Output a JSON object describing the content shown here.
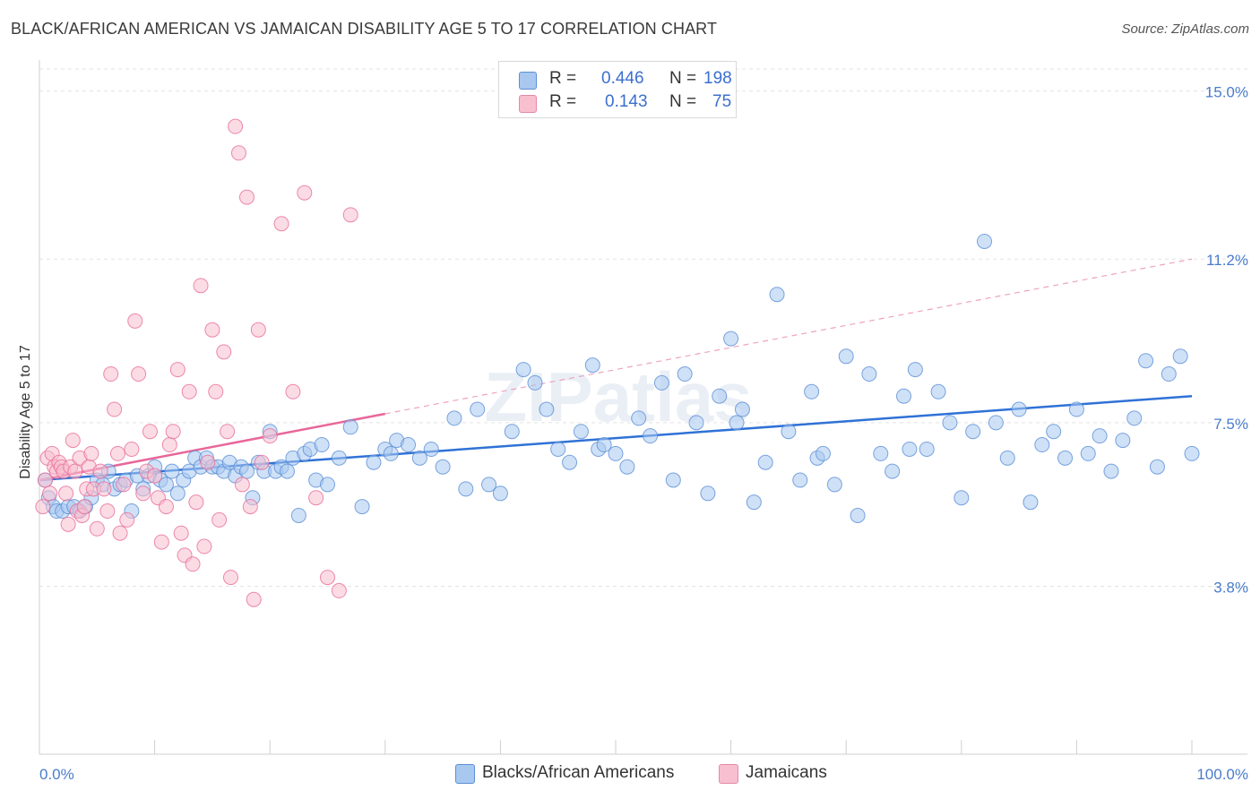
{
  "title": "BLACK/AFRICAN AMERICAN VS JAMAICAN DISABILITY AGE 5 TO 17 CORRELATION CHART",
  "source": "Source: ZipAtlas.com",
  "watermark": "ZIPatlas",
  "legend": {
    "r_label": "R =",
    "n_label": "N =",
    "rows": [
      {
        "r": "0.446",
        "n": "198",
        "color": "#a8c8f0",
        "border": "#5b8fd6"
      },
      {
        "r": "0.143",
        "n": "75",
        "color": "#f7bfd0",
        "border": "#e58aa8"
      }
    ]
  },
  "bottom_legend": [
    {
      "label": "Blacks/African Americans",
      "color": "#a8c8f0",
      "border": "#5b8fd6"
    },
    {
      "label": "Jamaicans",
      "color": "#f7bfd0",
      "border": "#e58aa8"
    }
  ],
  "chart_data": {
    "type": "scatter",
    "ylabel": "Disability Age 5 to 17",
    "xlim": [
      0,
      100
    ],
    "ylim": [
      0,
      15.5
    ],
    "y_ticks": [
      {
        "value": 15.0,
        "label": "15.0%"
      },
      {
        "value": 11.2,
        "label": "11.2%"
      },
      {
        "value": 7.5,
        "label": "7.5%"
      },
      {
        "value": 3.8,
        "label": "3.8%"
      }
    ],
    "x_tick_labels": [
      {
        "value": 0,
        "label": "0.0%"
      },
      {
        "value": 100,
        "label": "100.0%"
      }
    ],
    "grid": true,
    "series": [
      {
        "name": "Blacks/African Americans",
        "color": "#5b8fd6",
        "fill": "#a8c8f0",
        "trend": {
          "x0": 0,
          "y0": 6.2,
          "x1": 100,
          "y1": 8.1,
          "dashed_after": null
        },
        "points": [
          [
            0.5,
            6.2
          ],
          [
            0.8,
            5.8
          ],
          [
            1.2,
            5.6
          ],
          [
            1.5,
            5.5
          ],
          [
            2,
            5.5
          ],
          [
            2.5,
            5.6
          ],
          [
            3,
            5.6
          ],
          [
            3.5,
            5.5
          ],
          [
            4,
            5.6
          ],
          [
            4.5,
            5.8
          ],
          [
            5,
            6.2
          ],
          [
            5.5,
            6.1
          ],
          [
            6,
            6.4
          ],
          [
            6.5,
            6.0
          ],
          [
            7,
            6.1
          ],
          [
            7.5,
            6.2
          ],
          [
            8,
            5.5
          ],
          [
            8.5,
            6.3
          ],
          [
            9,
            6.0
          ],
          [
            9.5,
            6.3
          ],
          [
            10,
            6.5
          ],
          [
            10.5,
            6.2
          ],
          [
            11,
            6.1
          ],
          [
            11.5,
            6.4
          ],
          [
            12,
            5.9
          ],
          [
            12.5,
            6.2
          ],
          [
            13,
            6.4
          ],
          [
            13.5,
            6.7
          ],
          [
            14,
            6.5
          ],
          [
            14.5,
            6.7
          ],
          [
            15,
            6.5
          ],
          [
            15.5,
            6.5
          ],
          [
            16,
            6.4
          ],
          [
            16.5,
            6.6
          ],
          [
            17,
            6.3
          ],
          [
            17.5,
            6.5
          ],
          [
            18,
            6.4
          ],
          [
            18.5,
            5.8
          ],
          [
            19,
            6.6
          ],
          [
            19.5,
            6.4
          ],
          [
            20,
            7.3
          ],
          [
            20.5,
            6.4
          ],
          [
            21,
            6.5
          ],
          [
            21.5,
            6.4
          ],
          [
            22,
            6.7
          ],
          [
            22.5,
            5.4
          ],
          [
            23,
            6.8
          ],
          [
            23.5,
            6.9
          ],
          [
            24,
            6.2
          ],
          [
            24.5,
            7.0
          ],
          [
            25,
            6.1
          ],
          [
            26,
            6.7
          ],
          [
            27,
            7.4
          ],
          [
            28,
            5.6
          ],
          [
            29,
            6.6
          ],
          [
            30,
            6.9
          ],
          [
            30.5,
            6.8
          ],
          [
            31,
            7.1
          ],
          [
            32,
            7.0
          ],
          [
            33,
            6.7
          ],
          [
            34,
            6.9
          ],
          [
            35,
            6.5
          ],
          [
            36,
            7.6
          ],
          [
            37,
            6.0
          ],
          [
            38,
            7.8
          ],
          [
            39,
            6.1
          ],
          [
            40,
            5.9
          ],
          [
            41,
            7.3
          ],
          [
            42,
            8.7
          ],
          [
            43,
            8.4
          ],
          [
            44,
            7.8
          ],
          [
            45,
            6.9
          ],
          [
            46,
            6.6
          ],
          [
            47,
            7.3
          ],
          [
            48,
            8.8
          ],
          [
            48.5,
            6.9
          ],
          [
            49,
            7.0
          ],
          [
            50,
            6.8
          ],
          [
            51,
            6.5
          ],
          [
            52,
            7.6
          ],
          [
            53,
            7.2
          ],
          [
            54,
            8.4
          ],
          [
            55,
            6.2
          ],
          [
            56,
            8.6
          ],
          [
            57,
            7.5
          ],
          [
            58,
            5.9
          ],
          [
            59,
            8.1
          ],
          [
            60,
            9.4
          ],
          [
            60.5,
            7.5
          ],
          [
            61,
            7.8
          ],
          [
            62,
            5.7
          ],
          [
            63,
            6.6
          ],
          [
            64,
            10.4
          ],
          [
            65,
            7.3
          ],
          [
            66,
            6.2
          ],
          [
            67,
            8.2
          ],
          [
            67.5,
            6.7
          ],
          [
            68,
            6.8
          ],
          [
            69,
            6.1
          ],
          [
            70,
            9.0
          ],
          [
            71,
            5.4
          ],
          [
            72,
            8.6
          ],
          [
            73,
            6.8
          ],
          [
            74,
            6.4
          ],
          [
            75,
            8.1
          ],
          [
            75.5,
            6.9
          ],
          [
            76,
            8.7
          ],
          [
            77,
            6.9
          ],
          [
            78,
            8.2
          ],
          [
            79,
            7.5
          ],
          [
            80,
            5.8
          ],
          [
            81,
            7.3
          ],
          [
            82,
            11.6
          ],
          [
            83,
            7.5
          ],
          [
            84,
            6.7
          ],
          [
            85,
            7.8
          ],
          [
            86,
            5.7
          ],
          [
            87,
            7.0
          ],
          [
            88,
            7.3
          ],
          [
            89,
            6.7
          ],
          [
            90,
            7.8
          ],
          [
            91,
            6.8
          ],
          [
            92,
            7.2
          ],
          [
            93,
            6.4
          ],
          [
            94,
            7.1
          ],
          [
            95,
            7.6
          ],
          [
            96,
            8.9
          ],
          [
            97,
            6.5
          ],
          [
            98,
            8.6
          ],
          [
            99,
            9.0
          ],
          [
            100,
            6.8
          ]
        ]
      },
      {
        "name": "Jamaicans",
        "color": "#e86d98",
        "fill": "#f7bfd0",
        "trend": {
          "x0": 0,
          "y0": 6.2,
          "x1": 30,
          "y1": 7.7,
          "dashed_after": 30
        },
        "points": [
          [
            0.3,
            5.6
          ],
          [
            0.5,
            6.2
          ],
          [
            0.7,
            6.7
          ],
          [
            0.9,
            5.9
          ],
          [
            1.1,
            6.8
          ],
          [
            1.3,
            6.5
          ],
          [
            1.5,
            6.4
          ],
          [
            1.7,
            6.6
          ],
          [
            1.9,
            6.5
          ],
          [
            2.1,
            6.4
          ],
          [
            2.3,
            5.9
          ],
          [
            2.5,
            5.2
          ],
          [
            2.7,
            6.5
          ],
          [
            2.9,
            7.1
          ],
          [
            3.1,
            6.4
          ],
          [
            3.3,
            5.5
          ],
          [
            3.5,
            6.7
          ],
          [
            3.7,
            5.4
          ],
          [
            3.9,
            5.6
          ],
          [
            4.1,
            6.0
          ],
          [
            4.3,
            6.5
          ],
          [
            4.5,
            6.8
          ],
          [
            4.7,
            6.0
          ],
          [
            5,
            5.1
          ],
          [
            5.3,
            6.4
          ],
          [
            5.6,
            6.0
          ],
          [
            5.9,
            5.5
          ],
          [
            6.2,
            8.6
          ],
          [
            6.5,
            7.8
          ],
          [
            6.8,
            6.8
          ],
          [
            7,
            5.0
          ],
          [
            7.3,
            6.1
          ],
          [
            7.6,
            5.3
          ],
          [
            8,
            6.9
          ],
          [
            8.3,
            9.8
          ],
          [
            8.6,
            8.6
          ],
          [
            9,
            5.9
          ],
          [
            9.3,
            6.4
          ],
          [
            9.6,
            7.3
          ],
          [
            10,
            6.3
          ],
          [
            10.3,
            5.8
          ],
          [
            10.6,
            4.8
          ],
          [
            11,
            5.6
          ],
          [
            11.3,
            7.0
          ],
          [
            11.6,
            7.3
          ],
          [
            12,
            8.7
          ],
          [
            12.3,
            5.0
          ],
          [
            12.6,
            4.5
          ],
          [
            13,
            8.2
          ],
          [
            13.3,
            4.3
          ],
          [
            13.6,
            5.7
          ],
          [
            14,
            10.6
          ],
          [
            14.3,
            4.7
          ],
          [
            14.6,
            6.6
          ],
          [
            15,
            9.6
          ],
          [
            15.3,
            8.2
          ],
          [
            15.6,
            5.3
          ],
          [
            16,
            9.1
          ],
          [
            16.3,
            7.3
          ],
          [
            16.6,
            4.0
          ],
          [
            17,
            14.2
          ],
          [
            17.3,
            13.6
          ],
          [
            17.6,
            6.1
          ],
          [
            18,
            12.6
          ],
          [
            18.3,
            5.6
          ],
          [
            18.6,
            3.5
          ],
          [
            19,
            9.6
          ],
          [
            19.3,
            6.6
          ],
          [
            20,
            7.2
          ],
          [
            21,
            12.0
          ],
          [
            22,
            8.2
          ],
          [
            23,
            12.7
          ],
          [
            24,
            5.8
          ],
          [
            25,
            4.0
          ],
          [
            26,
            3.7
          ],
          [
            27,
            12.2
          ]
        ]
      }
    ]
  }
}
